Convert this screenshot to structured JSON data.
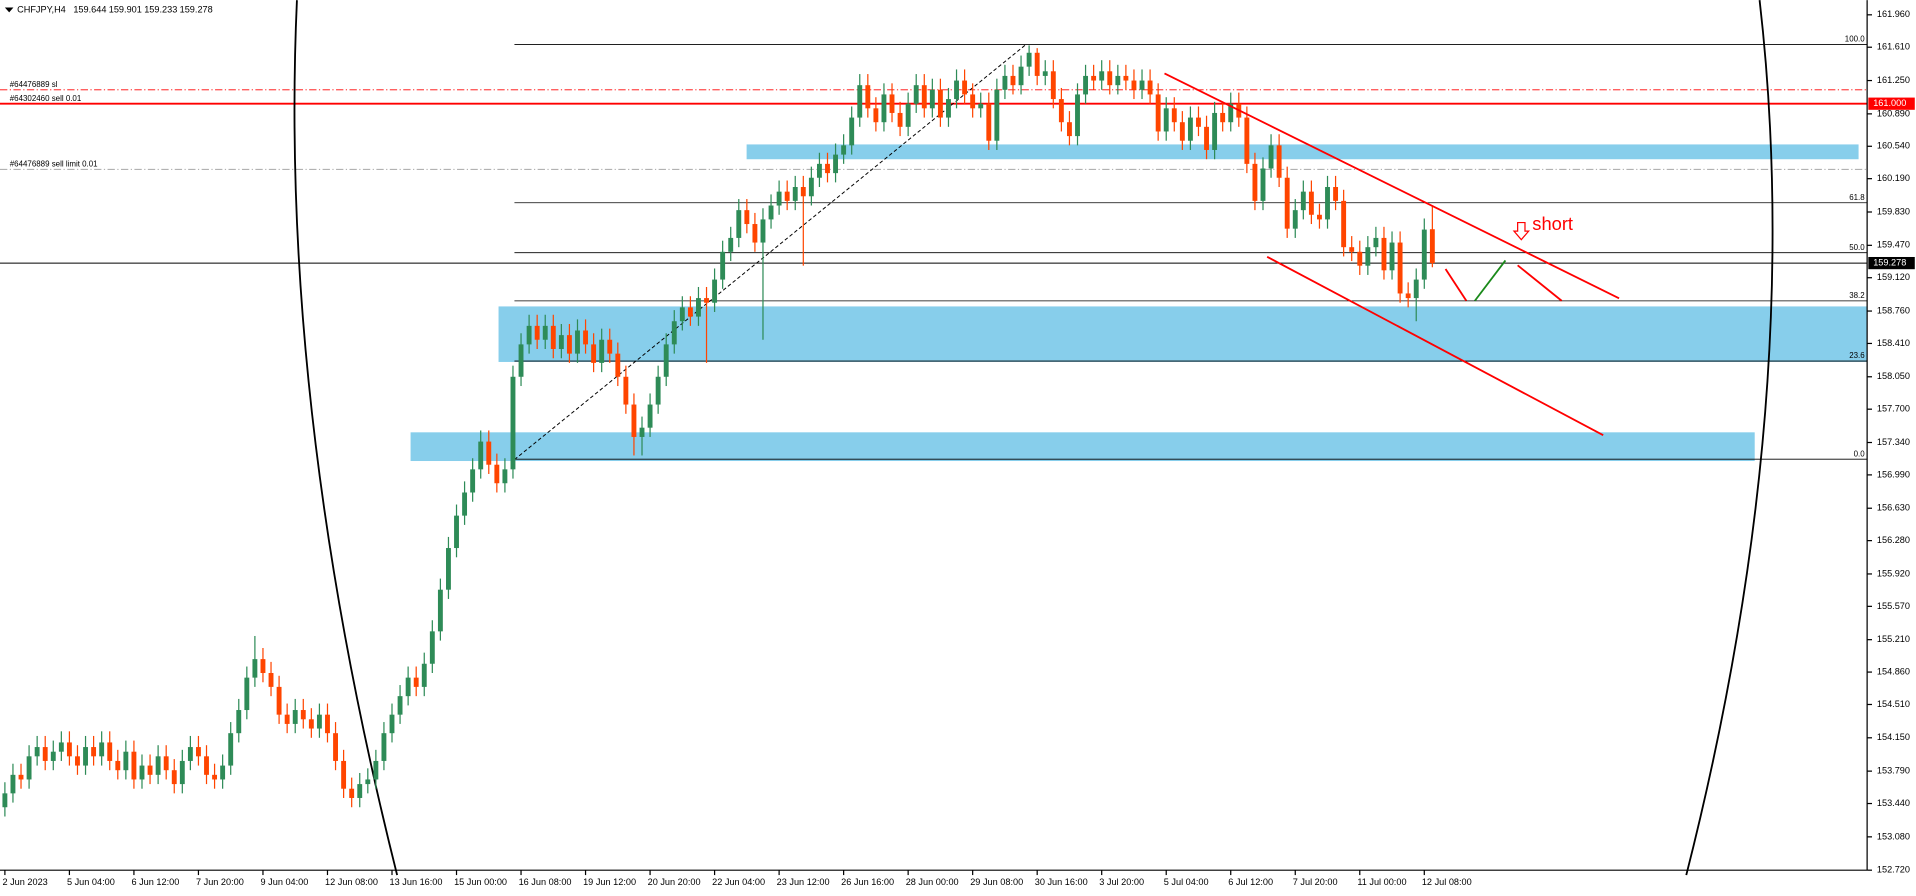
{
  "chart_data": {
    "type": "candlestick",
    "symbol": "CHFJPY,H4",
    "up_color": "#2e8b57",
    "down_color": "#ff4500",
    "ylim": [
      152.72,
      161.96
    ],
    "yticks": [
      {
        "value": 161.96,
        "label": "161.960"
      },
      {
        "value": 161.61,
        "label": "161.610"
      },
      {
        "value": 161.25,
        "label": "161.250"
      },
      {
        "value": 160.89,
        "label": "160.890"
      },
      {
        "value": 160.54,
        "label": "160.540"
      },
      {
        "value": 160.19,
        "label": "160.190"
      },
      {
        "value": 159.83,
        "label": "159.830"
      },
      {
        "value": 159.47,
        "label": "159.470"
      },
      {
        "value": 159.12,
        "label": "159.120"
      },
      {
        "value": 158.76,
        "label": "158.760"
      },
      {
        "value": 158.41,
        "label": "158.410"
      },
      {
        "value": 158.05,
        "label": "158.050"
      },
      {
        "value": 157.7,
        "label": "157.700"
      },
      {
        "value": 157.34,
        "label": "157.340"
      },
      {
        "value": 156.99,
        "label": "156.990"
      },
      {
        "value": 156.63,
        "label": "156.630"
      },
      {
        "value": 156.28,
        "label": "156.280"
      },
      {
        "value": 155.92,
        "label": "155.920"
      },
      {
        "value": 155.57,
        "label": "155.570"
      },
      {
        "value": 155.21,
        "label": "155.210"
      },
      {
        "value": 154.86,
        "label": "154.860"
      },
      {
        "value": 154.51,
        "label": "154.510"
      },
      {
        "value": 154.15,
        "label": "154.150"
      },
      {
        "value": 153.79,
        "label": "153.790"
      },
      {
        "value": 153.44,
        "label": "153.440"
      },
      {
        "value": 153.08,
        "label": "153.080"
      },
      {
        "value": 152.72,
        "label": "152.720"
      }
    ],
    "categories": [
      "2 Jun 2023",
      null,
      null,
      null,
      null,
      null,
      null,
      null,
      "5 Jun 04:00",
      null,
      null,
      null,
      null,
      null,
      null,
      null,
      "6 Jun 12:00",
      null,
      null,
      null,
      null,
      null,
      null,
      null,
      "7 Jun 20:00",
      null,
      null,
      null,
      null,
      null,
      null,
      null,
      "9 Jun 04:00",
      null,
      null,
      null,
      null,
      null,
      null,
      null,
      "12 Jun 08:00",
      null,
      null,
      null,
      null,
      null,
      null,
      null,
      "13 Jun 16:00",
      null,
      null,
      null,
      null,
      null,
      null,
      null,
      "15 Jun 00:00",
      null,
      null,
      null,
      null,
      null,
      null,
      null,
      "16 Jun 08:00",
      null,
      null,
      null,
      null,
      null,
      null,
      null,
      "19 Jun 12:00",
      null,
      null,
      null,
      null,
      null,
      null,
      null,
      "20 Jun 20:00",
      null,
      null,
      null,
      null,
      null,
      null,
      null,
      "22 Jun 04:00",
      null,
      null,
      null,
      null,
      null,
      null,
      null,
      "23 Jun 12:00",
      null,
      null,
      null,
      null,
      null,
      null,
      null,
      "26 Jun 16:00",
      null,
      null,
      null,
      null,
      null,
      null,
      null,
      "28 Jun 00:00",
      null,
      null,
      null,
      null,
      null,
      null,
      null,
      "29 Jun 08:00",
      null,
      null,
      null,
      null,
      null,
      null,
      null,
      "30 Jun 16:00",
      null,
      null,
      null,
      null,
      null,
      null,
      null,
      "3 Jul 20:00",
      null,
      null,
      null,
      null,
      null,
      null,
      null,
      "5 Jul 04:00",
      null,
      null,
      null,
      null,
      null,
      null,
      null,
      "6 Jul 12:00",
      null,
      null,
      null,
      null,
      null,
      null,
      null,
      "7 Jul 20:00",
      null,
      null,
      null,
      null,
      null,
      null,
      null,
      "11 Jul 00:00",
      null,
      null,
      null,
      null,
      null,
      null,
      null,
      "12 Jul 08:00",
      null
    ],
    "ohlc": [
      [
        153.4,
        153.67,
        153.3,
        153.55
      ],
      [
        153.55,
        153.87,
        153.45,
        153.75
      ],
      [
        153.75,
        153.87,
        153.6,
        153.7
      ],
      [
        153.7,
        154.07,
        153.6,
        153.95
      ],
      [
        153.95,
        154.17,
        153.85,
        154.05
      ],
      [
        154.05,
        154.17,
        153.8,
        153.9
      ],
      [
        153.9,
        154.12,
        153.8,
        154.0
      ],
      [
        154.0,
        154.22,
        153.9,
        154.1
      ],
      [
        154.1,
        154.22,
        153.85,
        153.95
      ],
      [
        153.95,
        154.07,
        153.75,
        153.85
      ],
      [
        153.85,
        154.17,
        153.75,
        154.05
      ],
      [
        154.05,
        154.17,
        153.85,
        153.95
      ],
      [
        153.95,
        154.22,
        153.85,
        154.1
      ],
      [
        154.1,
        154.22,
        153.8,
        153.9
      ],
      [
        153.9,
        154.02,
        153.7,
        153.8
      ],
      [
        153.8,
        154.12,
        153.7,
        154.0
      ],
      [
        154.0,
        154.12,
        153.6,
        153.7
      ],
      [
        153.7,
        153.97,
        153.6,
        153.85
      ],
      [
        153.85,
        153.97,
        153.65,
        153.75
      ],
      [
        153.75,
        154.07,
        153.65,
        153.95
      ],
      [
        153.95,
        154.07,
        153.7,
        153.8
      ],
      [
        153.8,
        153.92,
        153.55,
        153.65
      ],
      [
        153.65,
        154.02,
        153.55,
        153.9
      ],
      [
        153.9,
        154.17,
        153.8,
        154.05
      ],
      [
        154.05,
        154.17,
        153.85,
        153.95
      ],
      [
        153.95,
        154.07,
        153.65,
        153.75
      ],
      [
        153.75,
        153.87,
        153.6,
        153.7
      ],
      [
        153.7,
        153.97,
        153.6,
        153.85
      ],
      [
        153.85,
        154.32,
        153.75,
        154.2
      ],
      [
        154.2,
        154.57,
        154.1,
        154.45
      ],
      [
        154.45,
        154.92,
        154.35,
        154.8
      ],
      [
        154.8,
        155.25,
        154.7,
        155.0
      ],
      [
        155.0,
        155.12,
        154.75,
        154.85
      ],
      [
        154.85,
        154.97,
        154.6,
        154.7
      ],
      [
        154.7,
        154.82,
        154.3,
        154.4
      ],
      [
        154.4,
        154.52,
        154.2,
        154.3
      ],
      [
        154.3,
        154.57,
        154.2,
        154.45
      ],
      [
        154.45,
        154.57,
        154.25,
        154.35
      ],
      [
        154.35,
        154.47,
        154.15,
        154.25
      ],
      [
        154.25,
        154.52,
        154.15,
        154.4
      ],
      [
        154.4,
        154.52,
        154.1,
        154.2
      ],
      [
        154.2,
        154.32,
        153.8,
        153.9
      ],
      [
        153.9,
        154.02,
        153.5,
        153.6
      ],
      [
        153.6,
        153.72,
        153.4,
        153.5
      ],
      [
        153.5,
        153.77,
        153.4,
        153.65
      ],
      [
        153.65,
        153.82,
        153.55,
        153.7
      ],
      [
        153.7,
        154.02,
        153.6,
        153.9
      ],
      [
        153.9,
        154.32,
        153.8,
        154.2
      ],
      [
        154.2,
        154.52,
        154.1,
        154.4
      ],
      [
        154.4,
        154.72,
        154.3,
        154.6
      ],
      [
        154.6,
        154.92,
        154.5,
        154.8
      ],
      [
        154.8,
        154.92,
        154.6,
        154.7
      ],
      [
        154.7,
        155.07,
        154.6,
        154.95
      ],
      [
        154.95,
        155.42,
        154.85,
        155.3
      ],
      [
        155.3,
        155.87,
        155.2,
        155.75
      ],
      [
        155.75,
        156.32,
        155.65,
        156.2
      ],
      [
        156.2,
        156.67,
        156.1,
        156.55
      ],
      [
        156.55,
        156.92,
        156.45,
        156.8
      ],
      [
        156.8,
        157.17,
        156.7,
        157.05
      ],
      [
        157.05,
        157.47,
        156.95,
        157.35
      ],
      [
        157.35,
        157.47,
        157.0,
        157.1
      ],
      [
        157.1,
        157.22,
        156.8,
        156.9
      ],
      [
        156.9,
        157.17,
        156.8,
        157.05
      ],
      [
        157.05,
        158.17,
        156.95,
        158.05
      ],
      [
        158.05,
        158.52,
        157.95,
        158.4
      ],
      [
        158.4,
        158.72,
        158.3,
        158.6
      ],
      [
        158.6,
        158.72,
        158.35,
        158.45
      ],
      [
        158.45,
        158.72,
        158.35,
        158.6
      ],
      [
        158.6,
        158.72,
        158.25,
        158.35
      ],
      [
        158.35,
        158.62,
        158.25,
        158.5
      ],
      [
        158.5,
        158.62,
        158.2,
        158.3
      ],
      [
        158.3,
        158.67,
        158.2,
        158.55
      ],
      [
        158.55,
        158.67,
        158.3,
        158.4
      ],
      [
        158.4,
        158.52,
        158.1,
        158.2
      ],
      [
        158.2,
        158.57,
        158.1,
        158.45
      ],
      [
        158.45,
        158.57,
        158.2,
        158.3
      ],
      [
        158.3,
        158.42,
        157.95,
        158.05
      ],
      [
        158.05,
        158.17,
        157.65,
        157.75
      ],
      [
        157.75,
        157.87,
        157.2,
        157.4
      ],
      [
        157.4,
        157.62,
        157.2,
        157.5
      ],
      [
        157.5,
        157.87,
        157.4,
        157.75
      ],
      [
        157.75,
        158.17,
        157.65,
        158.05
      ],
      [
        158.05,
        158.52,
        157.95,
        158.4
      ],
      [
        158.4,
        158.77,
        158.3,
        158.65
      ],
      [
        158.65,
        158.92,
        158.55,
        158.8
      ],
      [
        158.8,
        158.92,
        158.6,
        158.7
      ],
      [
        158.7,
        159.02,
        158.6,
        158.9
      ],
      [
        158.9,
        159.02,
        158.2,
        158.85
      ],
      [
        158.85,
        159.22,
        158.75,
        159.1
      ],
      [
        159.1,
        159.52,
        159.0,
        159.4
      ],
      [
        159.4,
        159.67,
        159.3,
        159.55
      ],
      [
        159.55,
        159.97,
        159.45,
        159.85
      ],
      [
        159.85,
        159.97,
        159.6,
        159.7
      ],
      [
        159.7,
        159.82,
        159.4,
        159.5
      ],
      [
        159.5,
        159.87,
        158.45,
        159.75
      ],
      [
        159.75,
        160.02,
        159.65,
        159.9
      ],
      [
        159.9,
        160.17,
        159.8,
        160.05
      ],
      [
        160.05,
        160.17,
        159.85,
        159.95
      ],
      [
        159.95,
        160.22,
        159.85,
        160.1
      ],
      [
        160.1,
        160.22,
        159.25,
        160.0
      ],
      [
        160.0,
        160.32,
        159.9,
        160.2
      ],
      [
        160.2,
        160.47,
        160.1,
        160.35
      ],
      [
        160.35,
        160.47,
        160.15,
        160.25
      ],
      [
        160.25,
        160.57,
        160.15,
        160.45
      ],
      [
        160.45,
        160.67,
        160.35,
        160.55
      ],
      [
        160.55,
        160.97,
        160.45,
        160.85
      ],
      [
        160.85,
        161.32,
        160.75,
        161.2
      ],
      [
        161.2,
        161.32,
        160.85,
        160.95
      ],
      [
        160.95,
        161.07,
        160.7,
        160.8
      ],
      [
        160.8,
        161.22,
        160.7,
        161.1
      ],
      [
        161.1,
        161.22,
        160.8,
        160.9
      ],
      [
        160.9,
        161.02,
        160.65,
        160.75
      ],
      [
        160.75,
        161.12,
        160.65,
        161.0
      ],
      [
        161.0,
        161.32,
        160.9,
        161.2
      ],
      [
        161.2,
        161.32,
        160.85,
        160.95
      ],
      [
        160.95,
        161.27,
        160.85,
        161.15
      ],
      [
        161.15,
        161.27,
        160.75,
        160.85
      ],
      [
        160.85,
        161.17,
        160.75,
        161.05
      ],
      [
        161.05,
        161.37,
        160.95,
        161.25
      ],
      [
        161.25,
        161.37,
        161.0,
        161.1
      ],
      [
        161.1,
        161.22,
        160.85,
        160.95
      ],
      [
        160.95,
        161.12,
        160.85,
        161.0
      ],
      [
        161.0,
        161.12,
        160.5,
        160.6
      ],
      [
        160.6,
        161.27,
        160.5,
        161.15
      ],
      [
        161.15,
        161.42,
        161.05,
        161.3
      ],
      [
        161.3,
        161.42,
        161.1,
        161.2
      ],
      [
        161.2,
        161.52,
        161.1,
        161.4
      ],
      [
        161.4,
        161.63,
        161.3,
        161.55
      ],
      [
        161.55,
        161.6,
        161.2,
        161.3
      ],
      [
        161.3,
        161.47,
        161.2,
        161.35
      ],
      [
        161.35,
        161.47,
        160.95,
        161.05
      ],
      [
        161.05,
        161.17,
        160.7,
        160.8
      ],
      [
        160.8,
        160.92,
        160.55,
        160.65
      ],
      [
        160.65,
        161.22,
        160.55,
        161.1
      ],
      [
        161.1,
        161.42,
        161.0,
        161.3
      ],
      [
        161.3,
        161.42,
        161.15,
        161.25
      ],
      [
        161.25,
        161.47,
        161.15,
        161.35
      ],
      [
        161.35,
        161.47,
        161.1,
        161.2
      ],
      [
        161.2,
        161.42,
        161.1,
        161.3
      ],
      [
        161.3,
        161.42,
        161.15,
        161.25
      ],
      [
        161.25,
        161.37,
        161.05,
        161.15
      ],
      [
        161.15,
        161.37,
        161.05,
        161.25
      ],
      [
        161.25,
        161.37,
        161.0,
        161.1
      ],
      [
        161.1,
        161.22,
        160.6,
        160.7
      ],
      [
        160.7,
        161.07,
        160.6,
        160.95
      ],
      [
        160.95,
        161.07,
        160.7,
        160.8
      ],
      [
        160.8,
        160.92,
        160.5,
        160.6
      ],
      [
        160.6,
        160.97,
        160.5,
        160.85
      ],
      [
        160.85,
        160.97,
        160.65,
        160.75
      ],
      [
        160.75,
        160.87,
        160.4,
        160.5
      ],
      [
        160.5,
        161.02,
        160.4,
        160.9
      ],
      [
        160.9,
        161.02,
        160.7,
        160.8
      ],
      [
        160.8,
        161.12,
        160.7,
        161.0
      ],
      [
        161.0,
        161.12,
        160.75,
        160.85
      ],
      [
        160.85,
        160.97,
        160.25,
        160.35
      ],
      [
        160.35,
        160.47,
        159.85,
        159.95
      ],
      [
        159.95,
        160.42,
        159.85,
        160.3
      ],
      [
        160.3,
        160.67,
        160.2,
        160.55
      ],
      [
        160.55,
        160.67,
        160.1,
        160.2
      ],
      [
        160.2,
        160.32,
        159.55,
        159.65
      ],
      [
        159.65,
        159.97,
        159.55,
        159.85
      ],
      [
        159.85,
        160.17,
        159.75,
        160.05
      ],
      [
        160.05,
        160.17,
        159.7,
        159.8
      ],
      [
        159.8,
        159.92,
        159.65,
        159.75
      ],
      [
        159.75,
        160.22,
        159.65,
        160.1
      ],
      [
        160.1,
        160.22,
        159.85,
        159.95
      ],
      [
        159.95,
        160.07,
        159.35,
        159.45
      ],
      [
        159.45,
        159.57,
        159.3,
        159.4
      ],
      [
        159.4,
        159.52,
        159.15,
        159.25
      ],
      [
        159.25,
        159.57,
        159.15,
        159.45
      ],
      [
        159.45,
        159.67,
        159.35,
        159.55
      ],
      [
        159.55,
        159.67,
        159.1,
        159.2
      ],
      [
        159.2,
        159.62,
        159.1,
        159.5
      ],
      [
        159.5,
        159.62,
        158.85,
        158.95
      ],
      [
        158.95,
        159.07,
        158.8,
        158.9
      ],
      [
        158.9,
        159.22,
        158.65,
        159.1
      ],
      [
        159.1,
        159.76,
        159.0,
        159.64
      ],
      [
        159.644,
        159.901,
        159.233,
        159.278
      ]
    ],
    "orders": [
      {
        "label": "#64476889 sl",
        "price": 161.15,
        "color": "#ff0000",
        "style": "dashdot"
      },
      {
        "label": "#64302460 sell 0.01",
        "price": 161.0,
        "price_label": "161.000",
        "color": "#ff0000",
        "style": "solid"
      },
      {
        "label": "#64476889 sell limit 0.01",
        "price": 160.29,
        "color": "#a8a8a8",
        "style": "dashdot"
      }
    ],
    "fibonacci": [
      {
        "label": "100.0",
        "price": 161.64
      },
      {
        "label": "61.8",
        "price": 159.93
      },
      {
        "label": "50.0",
        "price": 159.39
      },
      {
        "label": "38.2",
        "price": 158.87
      },
      {
        "label": "23.6",
        "price": 158.22
      },
      {
        "label": "0.0",
        "price": 157.16
      }
    ],
    "zones": [
      {
        "top": 160.56,
        "bottom": 160.4
      },
      {
        "top": 158.81,
        "bottom": 158.21
      },
      {
        "top": 157.45,
        "bottom": 157.14
      }
    ],
    "zone_color": "#87ceeb",
    "annotation": "short"
  }
}
